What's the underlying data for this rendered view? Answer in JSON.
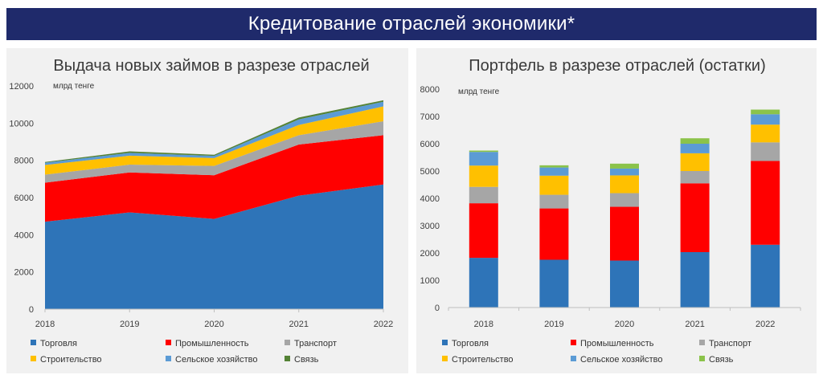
{
  "header": {
    "title": "Кредитование отраслей экономики*"
  },
  "colors": {
    "trade": "#2e74b8",
    "industry": "#ff0000",
    "transport": "#a6a6a6",
    "construction": "#ffc000",
    "agriculture": "#5b9bd5",
    "communication": "#548235",
    "banner": "#1f2a6b",
    "panel": "#f1f1f1"
  },
  "chart_data": [
    {
      "type": "area",
      "title": "Выдача новых займов в разрезе отраслей",
      "unit_label": "млрд тенге",
      "x": [
        "2018",
        "2019",
        "2020",
        "2021",
        "2022"
      ],
      "ylim": [
        0,
        12000
      ],
      "yticks": [
        "0",
        "2000",
        "4000",
        "6000",
        "8000",
        "10000",
        "12000"
      ],
      "stacked": true,
      "grid": false,
      "legend_position": "bottom",
      "series": [
        {
          "name": "Торговля",
          "color": "#2e74b8",
          "values": [
            4700,
            5200,
            4850,
            6100,
            6700
          ]
        },
        {
          "name": "Промышленность",
          "color": "#ff0000",
          "values": [
            2100,
            2150,
            2350,
            2750,
            2650
          ]
        },
        {
          "name": "Транспорт",
          "color": "#a6a6a6",
          "values": [
            430,
            420,
            500,
            500,
            750
          ]
        },
        {
          "name": "Строительство",
          "color": "#ffc000",
          "values": [
            520,
            480,
            420,
            550,
            800
          ]
        },
        {
          "name": "Сельское хозяйство",
          "color": "#5b9bd5",
          "values": [
            120,
            150,
            120,
            300,
            250
          ]
        },
        {
          "name": "Связь",
          "color": "#548235",
          "values": [
            40,
            80,
            60,
            100,
            80
          ]
        }
      ]
    },
    {
      "type": "bar",
      "title": "Портфель в разрезе отраслей (остатки)",
      "unit_label": "млрд тенге",
      "categories": [
        "2018",
        "2019",
        "2020",
        "2021",
        "2022"
      ],
      "ylim": [
        0,
        8000
      ],
      "yticks": [
        "0",
        "1000",
        "2000",
        "3000",
        "4000",
        "5000",
        "6000",
        "7000",
        "8000"
      ],
      "stacked": true,
      "grid": false,
      "legend_position": "bottom",
      "series": [
        {
          "name": "Торговля",
          "color": "#2e74b8",
          "values": [
            1820,
            1750,
            1720,
            2030,
            2300
          ]
        },
        {
          "name": "Промышленность",
          "color": "#ff0000",
          "values": [
            2000,
            1880,
            1970,
            2520,
            3070
          ]
        },
        {
          "name": "Транспорт",
          "color": "#a6a6a6",
          "values": [
            600,
            500,
            500,
            450,
            680
          ]
        },
        {
          "name": "Строительство",
          "color": "#ffc000",
          "values": [
            780,
            700,
            650,
            650,
            650
          ]
        },
        {
          "name": "Сельское хозяйство",
          "color": "#5b9bd5",
          "values": [
            500,
            300,
            250,
            350,
            380
          ]
        },
        {
          "name": "Связь",
          "color": "#8bc34a",
          "values": [
            50,
            80,
            180,
            200,
            170
          ]
        }
      ]
    }
  ]
}
